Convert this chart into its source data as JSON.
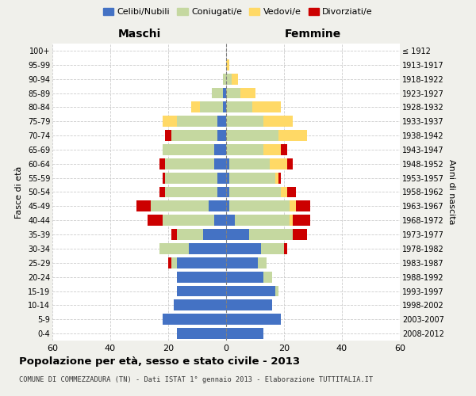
{
  "age_groups": [
    "0-4",
    "5-9",
    "10-14",
    "15-19",
    "20-24",
    "25-29",
    "30-34",
    "35-39",
    "40-44",
    "45-49",
    "50-54",
    "55-59",
    "60-64",
    "65-69",
    "70-74",
    "75-79",
    "80-84",
    "85-89",
    "90-94",
    "95-99",
    "100+"
  ],
  "birth_years": [
    "2008-2012",
    "2003-2007",
    "1998-2002",
    "1993-1997",
    "1988-1992",
    "1983-1987",
    "1978-1982",
    "1973-1977",
    "1968-1972",
    "1963-1967",
    "1958-1962",
    "1953-1957",
    "1948-1952",
    "1943-1947",
    "1938-1942",
    "1933-1937",
    "1928-1932",
    "1923-1927",
    "1918-1922",
    "1913-1917",
    "≤ 1912"
  ],
  "males": {
    "celibi": [
      17,
      22,
      18,
      17,
      17,
      17,
      13,
      8,
      4,
      6,
      3,
      3,
      4,
      4,
      3,
      3,
      1,
      1,
      0,
      0,
      0
    ],
    "coniugati": [
      0,
      0,
      0,
      0,
      0,
      2,
      10,
      9,
      18,
      20,
      18,
      18,
      17,
      18,
      16,
      14,
      8,
      4,
      1,
      0,
      0
    ],
    "vedovi": [
      0,
      0,
      0,
      0,
      0,
      0,
      0,
      0,
      0,
      0,
      0,
      0,
      0,
      0,
      0,
      5,
      3,
      0,
      0,
      0,
      0
    ],
    "divorziati": [
      0,
      0,
      0,
      0,
      0,
      1,
      0,
      2,
      5,
      5,
      2,
      1,
      2,
      0,
      2,
      0,
      0,
      0,
      0,
      0,
      0
    ]
  },
  "females": {
    "nubili": [
      13,
      19,
      16,
      17,
      13,
      11,
      12,
      8,
      3,
      1,
      1,
      1,
      1,
      0,
      0,
      0,
      0,
      0,
      0,
      0,
      0
    ],
    "coniugate": [
      0,
      0,
      0,
      1,
      3,
      3,
      8,
      15,
      19,
      21,
      18,
      16,
      14,
      13,
      18,
      13,
      9,
      5,
      2,
      0,
      0
    ],
    "vedove": [
      0,
      0,
      0,
      0,
      0,
      0,
      0,
      0,
      1,
      2,
      2,
      1,
      6,
      6,
      10,
      10,
      10,
      5,
      2,
      1,
      0
    ],
    "divorziate": [
      0,
      0,
      0,
      0,
      0,
      0,
      1,
      5,
      6,
      5,
      3,
      1,
      2,
      2,
      0,
      0,
      0,
      0,
      0,
      0,
      0
    ]
  },
  "color_celibi": "#4472C4",
  "color_coniugati": "#c5d8a0",
  "color_vedovi": "#FFD966",
  "color_divorziati": "#CC0000",
  "xlim": 60,
  "title": "Popolazione per età, sesso e stato civile - 2013",
  "subtitle": "COMUNE DI COMMEZZADURA (TN) - Dati ISTAT 1° gennaio 2013 - Elaborazione TUTTITALIA.IT",
  "ylabel_left": "Fasce di età",
  "ylabel_right": "Anni di nascita",
  "xlabel_left": "Maschi",
  "xlabel_right": "Femmine",
  "legend_labels": [
    "Celibi/Nubili",
    "Coniugati/e",
    "Vedovi/e",
    "Divorziati/e"
  ],
  "background_color": "#f0f0eb",
  "plot_bg_color": "#ffffff"
}
